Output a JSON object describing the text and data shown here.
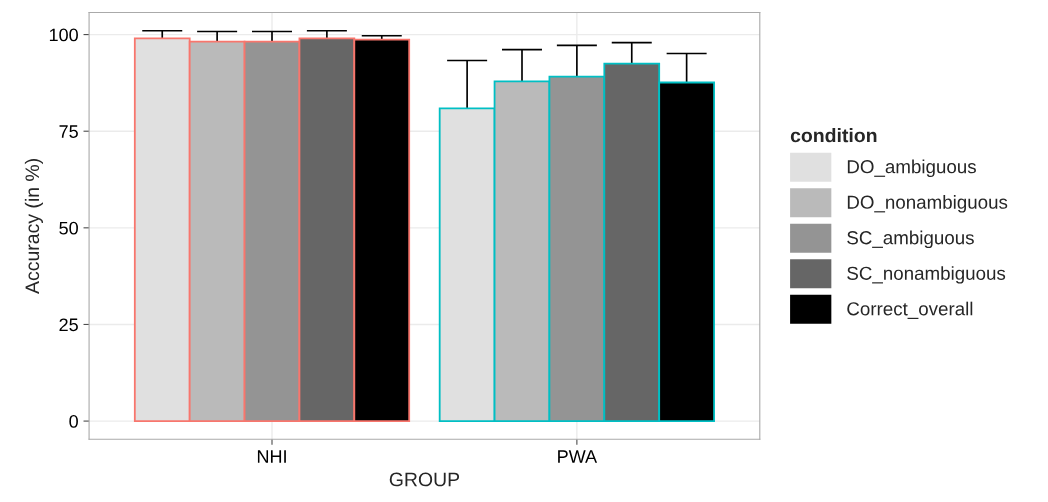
{
  "chart_data": {
    "type": "bar",
    "xlabel": "GROUP",
    "ylabel": "Accuracy (in %)",
    "legend_title": "condition",
    "categories": [
      "NHI",
      "PWA"
    ],
    "series": [
      {
        "name": "DO_ambiguous",
        "color": "#e0e0e0",
        "values": [
          99.0,
          80.9
        ],
        "errors": [
          2.0,
          12.4
        ]
      },
      {
        "name": "DO_nonambiguous",
        "color": "#bababa",
        "values": [
          98.2,
          87.9
        ],
        "errors": [
          2.6,
          8.2
        ]
      },
      {
        "name": "SC_ambiguous",
        "color": "#949494",
        "values": [
          98.2,
          89.1
        ],
        "errors": [
          2.6,
          8.1
        ]
      },
      {
        "name": "SC_nonambiguous",
        "color": "#666666",
        "values": [
          99.0,
          92.5
        ],
        "errors": [
          2.0,
          5.4
        ]
      },
      {
        "name": "Correct_overall",
        "color": "#000000",
        "values": [
          98.7,
          87.6
        ],
        "errors": [
          1.0,
          7.5
        ]
      }
    ],
    "ylim": [
      -4.7,
      105.7
    ],
    "yticks": [
      0,
      25,
      50,
      75,
      100
    ],
    "grid": true,
    "legend": "right"
  }
}
